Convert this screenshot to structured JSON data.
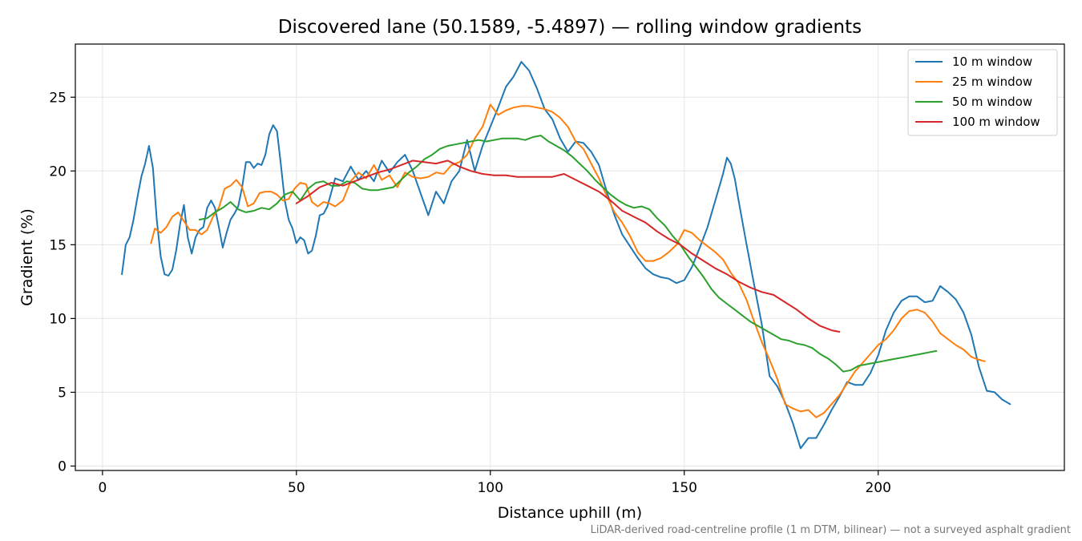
{
  "chart_data": {
    "type": "line",
    "title": "Discovered lane (50.1589, -5.4897) — rolling window gradients",
    "xlabel": "Distance uphill (m)",
    "ylabel": "Gradient (%)",
    "xlim": [
      -7,
      248
    ],
    "ylim": [
      -0.3,
      28.6
    ],
    "xticks": [
      0,
      50,
      100,
      150,
      200
    ],
    "yticks": [
      0,
      5,
      10,
      15,
      20,
      25
    ],
    "grid": true,
    "legend_position": "top-right",
    "footnote": "LiDAR-derived road-centreline profile (1 m DTM, bilinear) — not a surveyed asphalt gradient",
    "series": [
      {
        "name": "10 m window",
        "color": "#1f77b4",
        "x": [
          5,
          6,
          7,
          8,
          9,
          10,
          11,
          12,
          13,
          14,
          15,
          16,
          17,
          18,
          19,
          20,
          21,
          22,
          23,
          24,
          25,
          26,
          27,
          28,
          29,
          30,
          31,
          32,
          33,
          34,
          35,
          36,
          37,
          38,
          39,
          40,
          41,
          42,
          43,
          44,
          45,
          46,
          47,
          48,
          49,
          50,
          51,
          52,
          53,
          54,
          55,
          56,
          57,
          58,
          60,
          62,
          64,
          66,
          68,
          70,
          72,
          74,
          76,
          78,
          80,
          82,
          84,
          86,
          88,
          90,
          92,
          94,
          96,
          98,
          100,
          102,
          104,
          106,
          108,
          110,
          112,
          114,
          116,
          118,
          120,
          122,
          124,
          126,
          128,
          130,
          132,
          134,
          136,
          138,
          140,
          142,
          144,
          146,
          148,
          150,
          152,
          154,
          156,
          158,
          160,
          161,
          162,
          163,
          164,
          166,
          168,
          170,
          172,
          174,
          176,
          178,
          180,
          182,
          184,
          186,
          188,
          190,
          192,
          194,
          196,
          198,
          200,
          202,
          204,
          206,
          208,
          210,
          212,
          214,
          216,
          218,
          220,
          222,
          224,
          226,
          228,
          230,
          232,
          234
        ],
        "values": [
          13.0,
          15.0,
          15.5,
          16.7,
          18.2,
          19.6,
          20.5,
          21.7,
          20.2,
          16.7,
          14.2,
          13.0,
          12.9,
          13.3,
          14.6,
          16.4,
          17.7,
          15.5,
          14.4,
          15.5,
          16.0,
          16.2,
          17.5,
          18.0,
          17.5,
          16.2,
          14.8,
          15.8,
          16.7,
          17.1,
          17.6,
          18.9,
          20.6,
          20.6,
          20.2,
          20.5,
          20.4,
          21.1,
          22.5,
          23.1,
          22.7,
          20.4,
          18.0,
          16.7,
          16.1,
          15.1,
          15.5,
          15.3,
          14.4,
          14.6,
          15.6,
          17.0,
          17.1,
          17.6,
          19.5,
          19.3,
          20.3,
          19.4,
          20.0,
          19.3,
          20.7,
          19.9,
          20.6,
          21.1,
          20.0,
          18.5,
          17.0,
          18.6,
          17.8,
          19.3,
          20.0,
          22.1,
          20.0,
          21.7,
          23.0,
          24.3,
          25.7,
          26.4,
          27.4,
          26.8,
          25.6,
          24.2,
          23.5,
          22.2,
          21.3,
          22.0,
          21.9,
          21.3,
          20.4,
          18.6,
          17.0,
          15.7,
          14.9,
          14.1,
          13.4,
          13.0,
          12.8,
          12.7,
          12.4,
          12.6,
          13.5,
          14.8,
          16.2,
          18.0,
          19.8,
          20.9,
          20.5,
          19.5,
          18.0,
          15.1,
          12.3,
          9.6,
          6.1,
          5.4,
          4.3,
          2.9,
          1.2,
          1.9,
          1.9,
          2.8,
          3.8,
          4.7,
          5.7,
          5.5,
          5.5,
          6.3,
          7.5,
          9.2,
          10.4,
          11.2,
          11.5,
          11.5,
          11.1,
          11.2,
          12.2,
          11.8,
          11.3,
          10.4,
          8.9,
          6.7,
          5.1,
          5.0,
          4.5,
          4.2
        ]
      },
      {
        "name": "25 m window",
        "color": "#ff7f0e",
        "x": [
          12.5,
          13.5,
          15,
          16.5,
          18,
          19.5,
          21,
          22.5,
          24,
          25.5,
          27,
          28.5,
          30,
          31.5,
          33,
          34.5,
          36,
          37.5,
          39,
          40.5,
          42,
          43.5,
          45,
          46.5,
          48,
          49.5,
          51,
          52.5,
          54,
          55.5,
          57,
          58.5,
          60,
          62,
          64,
          66,
          68,
          70,
          72,
          74,
          76,
          78,
          80,
          82,
          84,
          86,
          88,
          90,
          92,
          94,
          96,
          98,
          100,
          102,
          104,
          106,
          108,
          110,
          112,
          114,
          116,
          118,
          120,
          122,
          124,
          126,
          128,
          130,
          132,
          134,
          136,
          138,
          140,
          142,
          144,
          146,
          148,
          150,
          152,
          154,
          156,
          158,
          160,
          162,
          164,
          166,
          168,
          170,
          172,
          174,
          176,
          178,
          180,
          182,
          184,
          186,
          188,
          190,
          192,
          194,
          196,
          198,
          200,
          202,
          204,
          206,
          208,
          210,
          212,
          214,
          216,
          218,
          220,
          222,
          224,
          226,
          227.5
        ],
        "values": [
          15.1,
          16.1,
          15.8,
          16.2,
          16.9,
          17.2,
          16.6,
          16.0,
          16.0,
          15.7,
          16.0,
          16.9,
          17.5,
          18.8,
          19.0,
          19.4,
          18.9,
          17.6,
          17.8,
          18.5,
          18.6,
          18.6,
          18.4,
          18.0,
          18.1,
          18.8,
          19.2,
          19.1,
          17.9,
          17.6,
          17.9,
          17.8,
          17.6,
          18.0,
          19.3,
          19.9,
          19.5,
          20.4,
          19.4,
          19.7,
          18.9,
          19.9,
          19.6,
          19.5,
          19.6,
          19.9,
          19.8,
          20.4,
          20.6,
          21.1,
          22.2,
          23.0,
          24.5,
          23.8,
          24.1,
          24.3,
          24.4,
          24.4,
          24.3,
          24.2,
          24.0,
          23.6,
          23.0,
          22.0,
          21.5,
          20.5,
          19.5,
          18.3,
          17.2,
          16.5,
          15.6,
          14.5,
          13.9,
          13.9,
          14.1,
          14.5,
          15.0,
          16.0,
          15.8,
          15.3,
          14.9,
          14.5,
          14.0,
          13.1,
          12.4,
          11.3,
          9.8,
          8.4,
          7.2,
          5.9,
          4.2,
          3.9,
          3.7,
          3.8,
          3.3,
          3.6,
          4.2,
          4.8,
          5.6,
          6.4,
          7.0,
          7.6,
          8.2,
          8.6,
          9.2,
          10.0,
          10.5,
          10.6,
          10.4,
          9.8,
          9.0,
          8.6,
          8.2,
          7.9,
          7.4,
          7.2,
          7.1
        ]
      },
      {
        "name": "50 m window",
        "color": "#2ca02c",
        "x": [
          25,
          27,
          29,
          31,
          33,
          35,
          37,
          39,
          41,
          43,
          45,
          47,
          49,
          51,
          53,
          55,
          57,
          59,
          61,
          63,
          65,
          67,
          69,
          71,
          73,
          75,
          77,
          79,
          81,
          83,
          85,
          87,
          89,
          91,
          93,
          95,
          97,
          99,
          101,
          103,
          105,
          107,
          109,
          111,
          113,
          115,
          117,
          119,
          121,
          123,
          125,
          127,
          129,
          131,
          133,
          135,
          137,
          139,
          141,
          143,
          145,
          147,
          149,
          151,
          153,
          155,
          157,
          159,
          161,
          163,
          165,
          167,
          169,
          171,
          173,
          175,
          177,
          179,
          181,
          183,
          185,
          187,
          189,
          191,
          193,
          195,
          197,
          199,
          201,
          203,
          205,
          207,
          209,
          211,
          213,
          215
        ],
        "values": [
          16.7,
          16.8,
          17.2,
          17.5,
          17.9,
          17.4,
          17.2,
          17.3,
          17.5,
          17.4,
          17.8,
          18.4,
          18.6,
          18.0,
          18.8,
          19.2,
          19.3,
          19.0,
          19.0,
          19.3,
          19.2,
          18.8,
          18.7,
          18.7,
          18.8,
          18.9,
          19.4,
          19.9,
          20.3,
          20.8,
          21.1,
          21.5,
          21.7,
          21.8,
          21.9,
          22.0,
          22.1,
          22.0,
          22.1,
          22.2,
          22.2,
          22.2,
          22.1,
          22.3,
          22.4,
          22.0,
          21.7,
          21.4,
          21.0,
          20.5,
          20.0,
          19.4,
          18.9,
          18.4,
          18.0,
          17.7,
          17.5,
          17.6,
          17.4,
          16.8,
          16.3,
          15.6,
          15.0,
          14.2,
          13.5,
          12.8,
          12.0,
          11.4,
          11.0,
          10.6,
          10.2,
          9.8,
          9.5,
          9.2,
          8.9,
          8.6,
          8.5,
          8.3,
          8.2,
          8.0,
          7.6,
          7.3,
          6.9,
          6.4,
          6.5,
          6.8,
          6.9,
          7.0,
          7.1,
          7.2,
          7.3,
          7.4,
          7.5,
          7.6,
          7.7,
          7.8
        ]
      },
      {
        "name": "100 m window",
        "color": "#d62728",
        "x": [
          50,
          53,
          56,
          59,
          62,
          65,
          68,
          71,
          74,
          77,
          80,
          83,
          86,
          89,
          92,
          95,
          98,
          101,
          104,
          107,
          110,
          113,
          116,
          119,
          122,
          125,
          128,
          131,
          134,
          137,
          140,
          143,
          146,
          149,
          152,
          155,
          158,
          161,
          164,
          167,
          170,
          173,
          176,
          179,
          182,
          185,
          188,
          190
        ],
        "values": [
          17.8,
          18.3,
          18.9,
          19.2,
          19.0,
          19.3,
          19.6,
          19.9,
          20.1,
          20.4,
          20.7,
          20.6,
          20.5,
          20.7,
          20.3,
          20.0,
          19.8,
          19.7,
          19.7,
          19.6,
          19.6,
          19.6,
          19.6,
          19.8,
          19.4,
          19.0,
          18.6,
          18.0,
          17.3,
          16.9,
          16.5,
          15.9,
          15.4,
          15.0,
          14.4,
          13.9,
          13.4,
          13.0,
          12.5,
          12.1,
          11.8,
          11.6,
          11.1,
          10.6,
          10.0,
          9.5,
          9.2,
          9.1
        ]
      }
    ]
  }
}
